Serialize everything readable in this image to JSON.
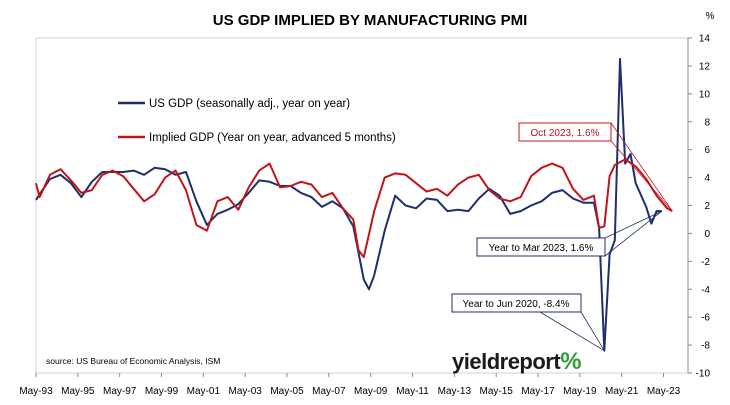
{
  "chart_data": {
    "type": "line",
    "title": "US GDP IMPLIED BY MANUFACTURING PMI",
    "y_unit": "%",
    "ylim": [
      -10,
      14
    ],
    "yticks": [
      -10,
      -8,
      -6,
      -4,
      -2,
      0,
      2,
      4,
      6,
      8,
      10,
      12,
      14
    ],
    "xlim": [
      1993.33,
      2024.5
    ],
    "xtick_labels": [
      "May-93",
      "May-95",
      "May-97",
      "May-99",
      "May-01",
      "May-03",
      "May-05",
      "May-07",
      "May-09",
      "May-11",
      "May-13",
      "May-15",
      "May-17",
      "May-19",
      "May-21",
      "May-23"
    ],
    "xtick_years": [
      1993.33,
      1995.33,
      1997.33,
      1999.33,
      2001.33,
      2003.33,
      2005.33,
      2007.33,
      2009.33,
      2011.33,
      2013.33,
      2015.33,
      2017.33,
      2019.33,
      2021.33,
      2023.33
    ],
    "grid": false,
    "legend_position": "top-left",
    "series": [
      {
        "name": "US GDP (seasonally adj., year on year)",
        "color": "#1f2f6b",
        "x": [
          1993.0,
          1993.5,
          1994.0,
          1994.5,
          1995.0,
          1995.5,
          1996.0,
          1996.5,
          1997.0,
          1997.5,
          1998.0,
          1998.5,
          1999.0,
          1999.5,
          2000.0,
          2000.5,
          2001.0,
          2001.5,
          2002.0,
          2002.5,
          2003.0,
          2003.5,
          2004.0,
          2004.5,
          2005.0,
          2005.5,
          2006.0,
          2006.5,
          2007.0,
          2007.5,
          2008.0,
          2008.5,
          2009.0,
          2009.25,
          2009.5,
          2010.0,
          2010.5,
          2011.0,
          2011.5,
          2012.0,
          2012.5,
          2013.0,
          2013.5,
          2014.0,
          2014.5,
          2015.0,
          2015.5,
          2016.0,
          2016.5,
          2017.0,
          2017.5,
          2018.0,
          2018.5,
          2019.0,
          2019.5,
          2020.0,
          2020.25,
          2020.5,
          2020.75,
          2021.0,
          2021.25,
          2021.5,
          2021.75,
          2022.0,
          2022.5,
          2022.75,
          2023.0,
          2023.25
        ],
        "values": [
          2.4,
          2.8,
          3.9,
          4.2,
          3.6,
          2.6,
          3.7,
          4.4,
          4.4,
          4.4,
          4.5,
          4.2,
          4.7,
          4.6,
          4.2,
          4.4,
          2.3,
          0.6,
          1.4,
          1.7,
          2.1,
          2.9,
          3.8,
          3.7,
          3.4,
          3.4,
          2.9,
          2.6,
          1.9,
          2.3,
          1.8,
          0.5,
          -3.3,
          -4.0,
          -3.0,
          0.2,
          2.7,
          2.0,
          1.8,
          2.5,
          2.4,
          1.6,
          1.7,
          1.6,
          2.5,
          3.2,
          2.7,
          1.4,
          1.6,
          2.0,
          2.3,
          2.9,
          3.1,
          2.5,
          2.2,
          2.2,
          0.4,
          -8.4,
          -1.5,
          -0.5,
          12.5,
          5.0,
          5.7,
          3.6,
          1.9,
          0.7,
          1.6,
          1.6
        ]
      },
      {
        "name": "Implied GDP (Year on year, advanced 5 months)",
        "color": "#c0141b",
        "x": [
          1993.0,
          1993.5,
          1994.0,
          1994.5,
          1995.0,
          1995.5,
          1996.0,
          1996.5,
          1997.0,
          1997.5,
          1998.0,
          1998.5,
          1999.0,
          1999.5,
          2000.0,
          2000.5,
          2001.0,
          2001.5,
          2002.0,
          2002.5,
          2003.0,
          2003.5,
          2004.0,
          2004.5,
          2005.0,
          2005.5,
          2006.0,
          2006.5,
          2007.0,
          2007.5,
          2008.0,
          2008.5,
          2008.75,
          2009.0,
          2009.5,
          2010.0,
          2010.5,
          2011.0,
          2011.5,
          2012.0,
          2012.5,
          2013.0,
          2013.5,
          2014.0,
          2014.5,
          2015.0,
          2015.5,
          2016.0,
          2016.5,
          2017.0,
          2017.5,
          2018.0,
          2018.5,
          2019.0,
          2019.5,
          2020.0,
          2020.25,
          2020.5,
          2020.75,
          2021.0,
          2021.5,
          2022.0,
          2022.5,
          2023.0,
          2023.5,
          2023.75
        ],
        "values": [
          3.6,
          2.6,
          4.2,
          4.6,
          3.8,
          2.9,
          3.1,
          4.2,
          4.5,
          4.1,
          3.2,
          2.3,
          2.8,
          4.0,
          4.5,
          3.1,
          0.6,
          0.2,
          2.3,
          2.6,
          1.7,
          3.3,
          4.5,
          5.0,
          3.3,
          3.4,
          3.7,
          3.5,
          2.6,
          2.9,
          1.8,
          1.0,
          -1.2,
          -1.7,
          1.6,
          4.0,
          4.3,
          4.2,
          3.6,
          3.0,
          3.2,
          2.7,
          3.5,
          4.0,
          4.2,
          3.1,
          2.5,
          2.3,
          2.6,
          4.1,
          4.7,
          5.0,
          4.7,
          3.2,
          2.4,
          2.7,
          0.4,
          0.5,
          4.1,
          4.9,
          5.3,
          4.8,
          3.9,
          2.7,
          1.8,
          1.6
        ]
      }
    ],
    "annotations": [
      {
        "text": "Oct 2023, 1.6%",
        "series": 1,
        "x": 2023.75,
        "y": 1.6,
        "color": "#c0141b"
      },
      {
        "text": "Year to Mar 2023, 1.6%",
        "series": 0,
        "x": 2023.25,
        "y": 1.6,
        "color": "#1f2f6b"
      },
      {
        "text": "Year to Jun 2020, -8.4%",
        "series": 0,
        "x": 2020.5,
        "y": -8.4,
        "color": "#1f2f6b"
      }
    ],
    "source": "source: US Bureau of Economic Analysis, ISM",
    "logo": {
      "word": "yieldreport",
      "symbol": "%"
    }
  }
}
